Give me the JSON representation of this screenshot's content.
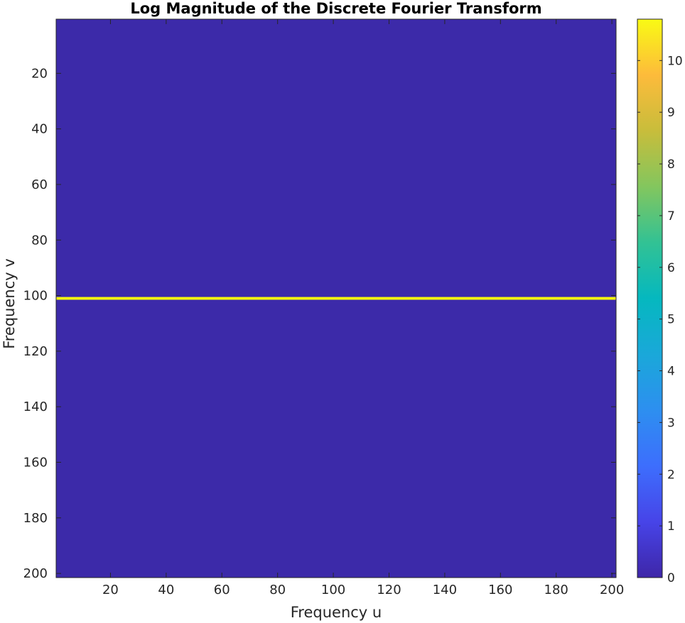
{
  "chart_data": {
    "type": "heatmap",
    "title": "Log Magnitude of the Discrete Fourier Transform",
    "xlabel": "Frequency u",
    "ylabel": "Frequency v",
    "xlim": [
      0.5,
      201.5
    ],
    "ylim": [
      0.5,
      201.5
    ],
    "y_direction": "reversed",
    "xticks": [
      20,
      40,
      60,
      80,
      100,
      120,
      140,
      160,
      180,
      200
    ],
    "yticks": [
      20,
      40,
      60,
      80,
      100,
      120,
      140,
      160,
      180,
      200
    ],
    "grid": false,
    "colormap": "parula",
    "colormap_stops": [
      "#3e26a8",
      "#4744e8",
      "#3d6efd",
      "#2d8ff0",
      "#1aa8d9",
      "#05b8bf",
      "#32c294",
      "#83c65e",
      "#c8bd3b",
      "#fdbb3b",
      "#f9fa14"
    ],
    "background_value": 0,
    "background_color": "#3c2aa9",
    "highlight_rows": [
      {
        "v": 101,
        "value": 10.8,
        "color": "#f9fb0e"
      }
    ],
    "colorbar": {
      "range": [
        0,
        10.8
      ],
      "ticks": [
        0,
        1,
        2,
        3,
        4,
        5,
        6,
        7,
        8,
        9,
        10
      ]
    }
  }
}
